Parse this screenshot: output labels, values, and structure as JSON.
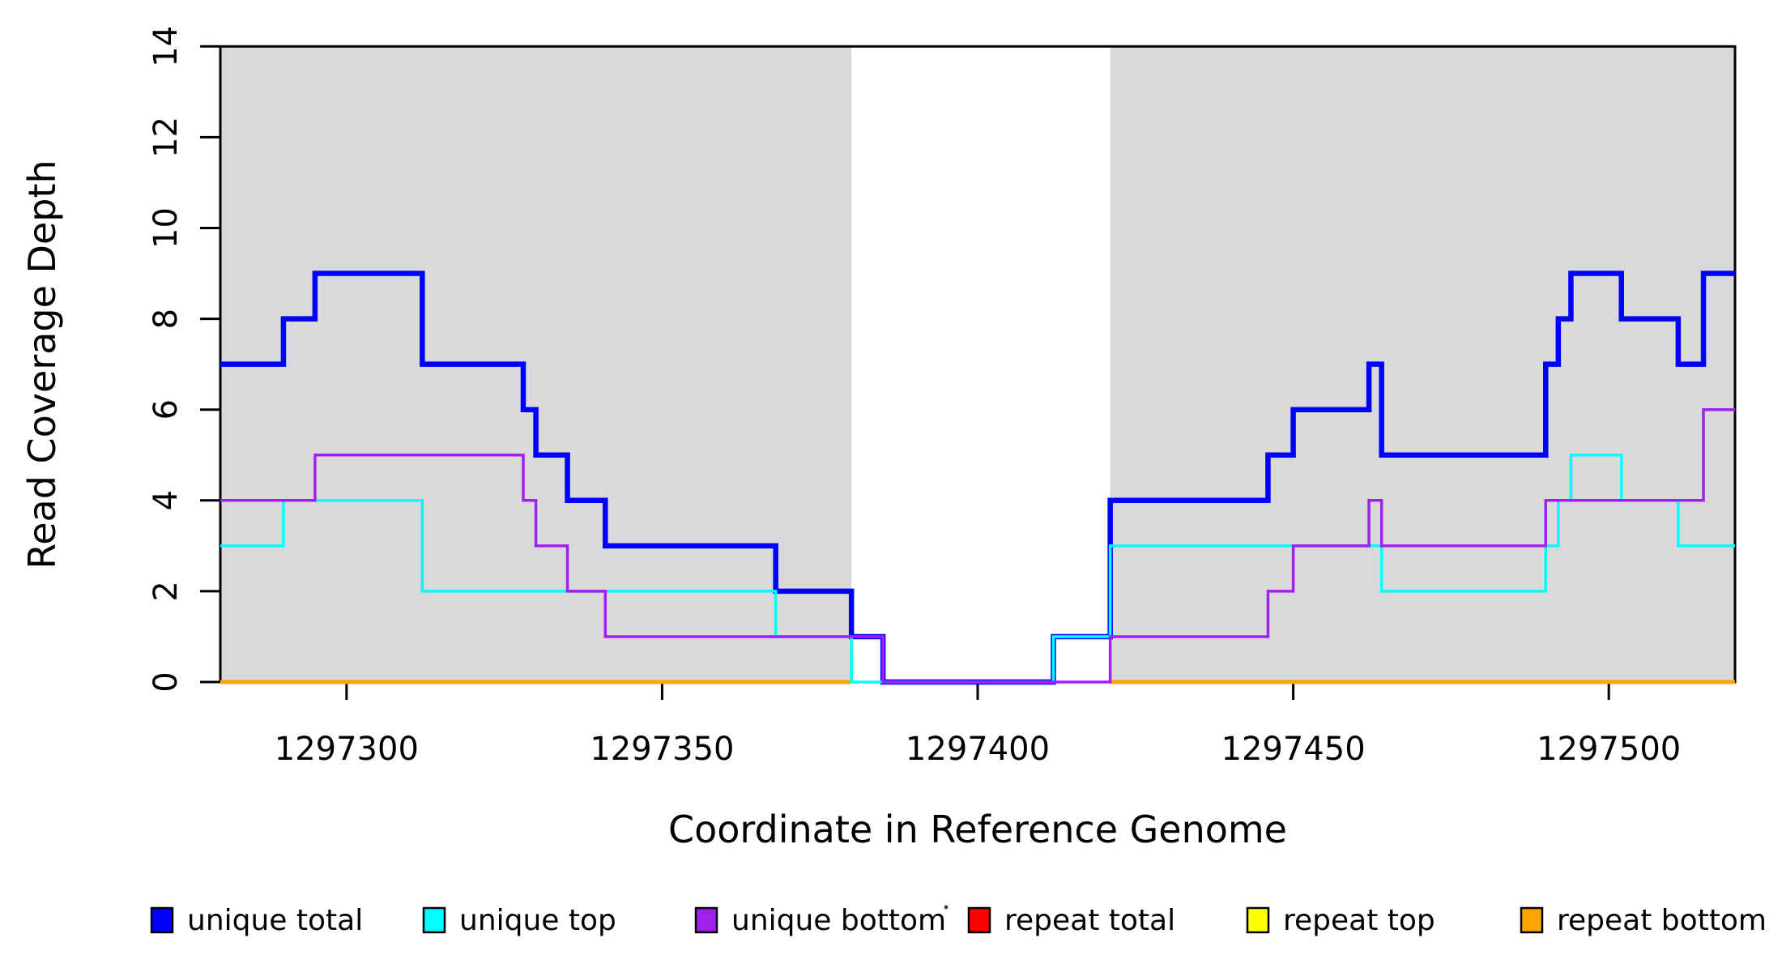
{
  "figure": {
    "title": "",
    "ylabel": "Read Coverage Depth",
    "xlabel": "Coordinate in Reference Genome"
  },
  "chart_data": {
    "type": "line",
    "subtype": "step",
    "title": "",
    "xlabel": "Coordinate in Reference Genome",
    "ylabel": "Read Coverage Depth",
    "xlim": [
      1297280,
      1297520
    ],
    "ylim": [
      0,
      14
    ],
    "x_ticks": [
      1297300,
      1297350,
      1297400,
      1297450,
      1297500
    ],
    "y_ticks": [
      0,
      2,
      4,
      6,
      8,
      10,
      12,
      14
    ],
    "grid": false,
    "legend_position": "bottom",
    "plot_bg": "#ffffff",
    "region_color": "#D9D9D9",
    "background_regions": [
      {
        "name": "left-unique-region",
        "x0": 1297280,
        "x1": 1297380
      },
      {
        "name": "right-unique-region",
        "x0": 1297421,
        "x1": 1297520
      }
    ],
    "series": [
      {
        "name": "repeat total",
        "color": "#FF0000",
        "width": 5,
        "constant_value": 0,
        "segments": [
          [
            1297280,
            1297380
          ],
          [
            1297421,
            1297520
          ]
        ]
      },
      {
        "name": "repeat top",
        "color": "#FFFF00",
        "width": 5,
        "constant_value": 0,
        "segments": [
          [
            1297280,
            1297380
          ],
          [
            1297421,
            1297520
          ]
        ]
      },
      {
        "name": "repeat bottom",
        "color": "#FFA500",
        "width": 5,
        "constant_value": 0,
        "segments": [
          [
            1297280,
            1297380
          ],
          [
            1297421,
            1297520
          ]
        ]
      },
      {
        "name": "unique total",
        "color": "#0000FF",
        "width": 6.5,
        "steps": [
          [
            1297280,
            7
          ],
          [
            1297290,
            8
          ],
          [
            1297295,
            9
          ],
          [
            1297312,
            7
          ],
          [
            1297328,
            6
          ],
          [
            1297330,
            5
          ],
          [
            1297335,
            4
          ],
          [
            1297341,
            3
          ],
          [
            1297368,
            2
          ],
          [
            1297380,
            1
          ],
          [
            1297385,
            0
          ],
          [
            1297412,
            1
          ],
          [
            1297421,
            4
          ],
          [
            1297446,
            5
          ],
          [
            1297450,
            6
          ],
          [
            1297462,
            7
          ],
          [
            1297464,
            5
          ],
          [
            1297490,
            7
          ],
          [
            1297492,
            8
          ],
          [
            1297494,
            9
          ],
          [
            1297502,
            8
          ],
          [
            1297511,
            7
          ],
          [
            1297515,
            9
          ]
        ],
        "end": 1297520
      },
      {
        "name": "unique top",
        "color": "#00FFFF",
        "width": 3.5,
        "steps": [
          [
            1297280,
            3
          ],
          [
            1297290,
            4
          ],
          [
            1297312,
            2
          ],
          [
            1297368,
            1
          ],
          [
            1297380,
            0
          ],
          [
            1297412,
            1
          ],
          [
            1297421,
            3
          ],
          [
            1297464,
            2
          ],
          [
            1297490,
            3
          ],
          [
            1297492,
            4
          ],
          [
            1297494,
            5
          ],
          [
            1297502,
            4
          ],
          [
            1297511,
            3
          ]
        ],
        "end": 1297520
      },
      {
        "name": "unique bottom",
        "color": "#A020F0",
        "width": 3.5,
        "steps": [
          [
            1297280,
            4
          ],
          [
            1297295,
            5
          ],
          [
            1297328,
            4
          ],
          [
            1297330,
            3
          ],
          [
            1297335,
            2
          ],
          [
            1297341,
            1
          ],
          [
            1297385,
            0
          ],
          [
            1297421,
            1
          ],
          [
            1297446,
            2
          ],
          [
            1297450,
            3
          ],
          [
            1297462,
            4
          ],
          [
            1297464,
            3
          ],
          [
            1297490,
            4
          ],
          [
            1297515,
            6
          ]
        ],
        "end": 1297520
      }
    ]
  },
  "legend": {
    "items": [
      {
        "label": "unique total",
        "color": "#0000FF"
      },
      {
        "label": "unique top",
        "color": "#00FFFF"
      },
      {
        "label": "unique bottom",
        "color": "#A020F0"
      },
      {
        "label": "repeat total",
        "color": "#FF0000"
      },
      {
        "label": "repeat top",
        "color": "#FFFF00"
      },
      {
        "label": "repeat bottom",
        "color": "#FFA500"
      }
    ]
  }
}
